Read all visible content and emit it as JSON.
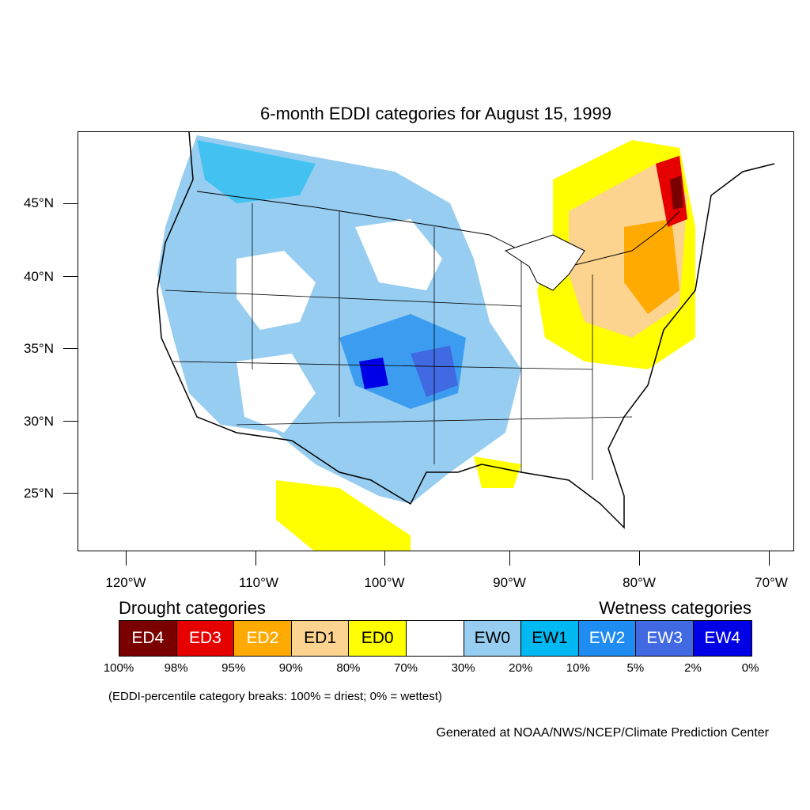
{
  "title": "6-month EDDI categories for August 15, 1999",
  "axes": {
    "y_ticks": [
      "45°N",
      "40°N",
      "35°N",
      "30°N",
      "25°N"
    ],
    "x_ticks": [
      "120°W",
      "110°W",
      "100°W",
      "90°W",
      "80°W",
      "70°W"
    ]
  },
  "legend": {
    "drought_heading": "Drought categories",
    "wetness_heading": "Wetness categories",
    "categories": [
      {
        "label": "ED4",
        "color": "#7a0000",
        "text_color": "#ffffff"
      },
      {
        "label": "ED3",
        "color": "#e60000",
        "text_color": "#ffffff"
      },
      {
        "label": "ED2",
        "color": "#ffaa00",
        "text_color": "#ffffff"
      },
      {
        "label": "ED1",
        "color": "#fcd38f",
        "text_color": "#000000"
      },
      {
        "label": "ED0",
        "color": "#ffff00",
        "text_color": "#000000"
      },
      {
        "label": "",
        "color": "#ffffff",
        "text_color": "#000000"
      },
      {
        "label": "EW0",
        "color": "#96cdf0",
        "text_color": "#000000"
      },
      {
        "label": "EW1",
        "color": "#00b9f2",
        "text_color": "#000000"
      },
      {
        "label": "EW2",
        "color": "#1e8cf0",
        "text_color": "#ffffff"
      },
      {
        "label": "EW3",
        "color": "#4169e1",
        "text_color": "#ffffff"
      },
      {
        "label": "EW4",
        "color": "#0000e6",
        "text_color": "#ffffff"
      }
    ],
    "percent_breaks": [
      "100%",
      "98%",
      "95%",
      "90%",
      "80%",
      "70%",
      "30%",
      "20%",
      "10%",
      "5%",
      "2%",
      "0%"
    ]
  },
  "footnote": "(EDDI-percentile category breaks: 100% = driest; 0% = wettest)",
  "credit": "Generated at NOAA/NWS/NCEP/Climate Prediction Center"
}
